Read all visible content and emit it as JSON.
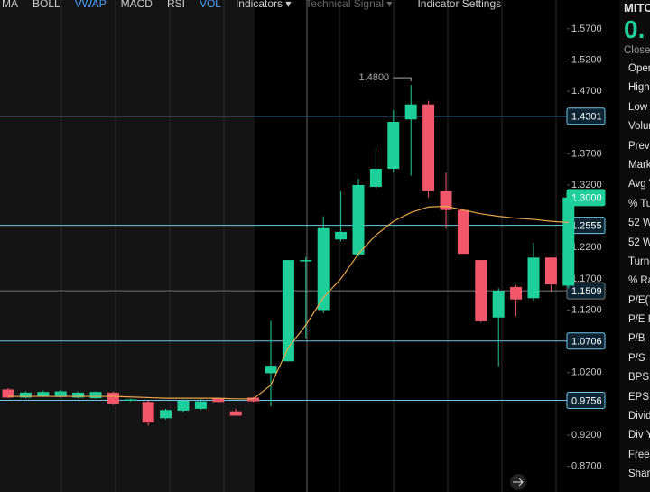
{
  "toolbar": {
    "items": [
      {
        "text": "MA",
        "color": "#cfcfcf"
      },
      {
        "text": "BOLL",
        "color": "#cfcfcf"
      },
      {
        "text": "VWAP",
        "color": "#4aa3ff"
      },
      {
        "text": "MACD",
        "color": "#cfcfcf"
      },
      {
        "text": "RSI",
        "color": "#cfcfcf"
      },
      {
        "text": "VOL",
        "color": "#4aa3ff"
      },
      {
        "text": "Indicators ▾",
        "color": "#cfcfcf"
      },
      {
        "text": "Technical Signal ▾",
        "color": "#666666"
      },
      {
        "text": "Indicator Settings",
        "color": "#cfcfcf"
      }
    ]
  },
  "sidebar": {
    "symbol": "MITC",
    "price": "0.",
    "close_label": "Close",
    "fields": [
      "Open",
      "High",
      "Low",
      "Volum",
      "Prev C",
      "Marke",
      "Avg V",
      "% Tur",
      "52 W",
      "52 W",
      "Turno",
      "% Ra",
      "P/E(T",
      "P/E Ra",
      "P/B",
      "P/S",
      "BPS",
      "EPS (T",
      "Divide",
      "Div Yi",
      "Free F",
      "Share"
    ]
  },
  "chart_data": {
    "type": "candlestick",
    "categories": [
      null,
      null,
      null,
      null,
      null,
      null,
      null,
      null,
      null,
      null,
      null,
      null,
      null,
      null,
      null,
      null,
      null,
      null,
      null,
      null,
      null,
      null,
      null,
      null,
      null,
      null,
      null,
      null,
      null,
      null,
      null,
      null,
      null
    ],
    "open": [
      0.993,
      0.98,
      0.982,
      0.981,
      0.98,
      0.979,
      0.988,
      0.976,
      0.973,
      0.947,
      0.959,
      0.962,
      0.979,
      0.958,
      0.98,
      1.019,
      1.038,
      1.199,
      1.12,
      1.233,
      1.209,
      1.317,
      1.346,
      1.425,
      1.449,
      1.31,
      1.28,
      1.2,
      1.108,
      1.157,
      1.139,
      1.204,
      1.159
    ],
    "high": [
      0.995,
      0.99,
      0.991,
      0.992,
      0.99,
      0.99,
      0.99,
      0.978,
      0.975,
      0.962,
      0.977,
      0.978,
      0.98,
      0.962,
      0.981,
      1.103,
      1.2,
      1.205,
      1.27,
      1.31,
      1.33,
      1.38,
      1.44,
      1.48,
      1.455,
      1.34,
      1.28,
      1.2,
      1.155,
      1.16,
      1.228,
      1.204,
      1.301
    ],
    "low": [
      0.979,
      0.979,
      0.981,
      0.98,
      0.979,
      0.978,
      0.968,
      0.974,
      0.935,
      0.945,
      0.957,
      0.96,
      0.972,
      0.952,
      0.973,
      0.966,
      1.038,
      1.075,
      1.115,
      1.23,
      1.205,
      1.315,
      1.34,
      1.335,
      1.3,
      1.25,
      1.21,
      1.1,
      1.03,
      1.11,
      1.135,
      1.15,
      1.155
    ],
    "close": [
      0.98,
      0.988,
      0.989,
      0.99,
      0.988,
      0.989,
      0.97,
      0.977,
      0.94,
      0.96,
      0.975,
      0.974,
      0.973,
      0.951,
      0.974,
      1.031,
      1.2,
      1.2,
      1.251,
      1.245,
      1.32,
      1.346,
      1.421,
      1.449,
      1.31,
      1.28,
      1.21,
      1.102,
      1.151,
      1.137,
      1.204,
      1.161,
      1.3
    ],
    "ma": [
      0.982,
      0.982,
      0.982,
      0.982,
      0.982,
      0.982,
      0.982,
      0.981,
      0.98,
      0.979,
      0.979,
      0.979,
      0.979,
      0.978,
      0.978,
      1.0,
      1.06,
      1.096,
      1.14,
      1.17,
      1.21,
      1.24,
      1.262,
      1.276,
      1.285,
      1.286,
      1.28,
      1.274,
      1.27,
      1.267,
      1.265,
      1.262,
      1.26
    ],
    "up_color": "#1fcf9a",
    "down_color": "#f2566b",
    "ma_color": "#e8a64a",
    "ylim": [
      0.829,
      1.616
    ],
    "yticks": [
      {
        "value": 1.57,
        "label": "1.5700"
      },
      {
        "value": 1.52,
        "label": "1.5200"
      },
      {
        "value": 1.47,
        "label": "1.4700"
      },
      {
        "value": 1.37,
        "label": "1.3700"
      },
      {
        "value": 1.32,
        "label": "1.3200"
      },
      {
        "value": 1.22,
        "label": "1.2200"
      },
      {
        "value": 1.17,
        "label": "1.1700"
      },
      {
        "value": 1.12,
        "label": "1.1200"
      },
      {
        "value": 1.02,
        "label": "1.0200"
      },
      {
        "value": 0.92,
        "label": "0.9200"
      },
      {
        "value": 0.87,
        "label": "0.8700"
      }
    ],
    "price_lines": [
      {
        "value": 1.4301,
        "label": "1.4301",
        "color": "#6ec6e6",
        "line": true
      },
      {
        "value": 1.3,
        "label": "1.3000",
        "color": "#1fcf9a",
        "line": false
      },
      {
        "value": 1.2555,
        "label": "1.2555",
        "color": "#6ec6e6",
        "line": true
      },
      {
        "value": 1.1509,
        "label": "1.1509",
        "color": "#777777",
        "line": true
      },
      {
        "value": 1.0706,
        "label": "1.0706",
        "color": "#6ec6e6",
        "line": true
      },
      {
        "value": 0.9756,
        "label": "0.9756",
        "color": "#6ec6e6",
        "line": true
      }
    ],
    "annotation": "1.4800"
  }
}
